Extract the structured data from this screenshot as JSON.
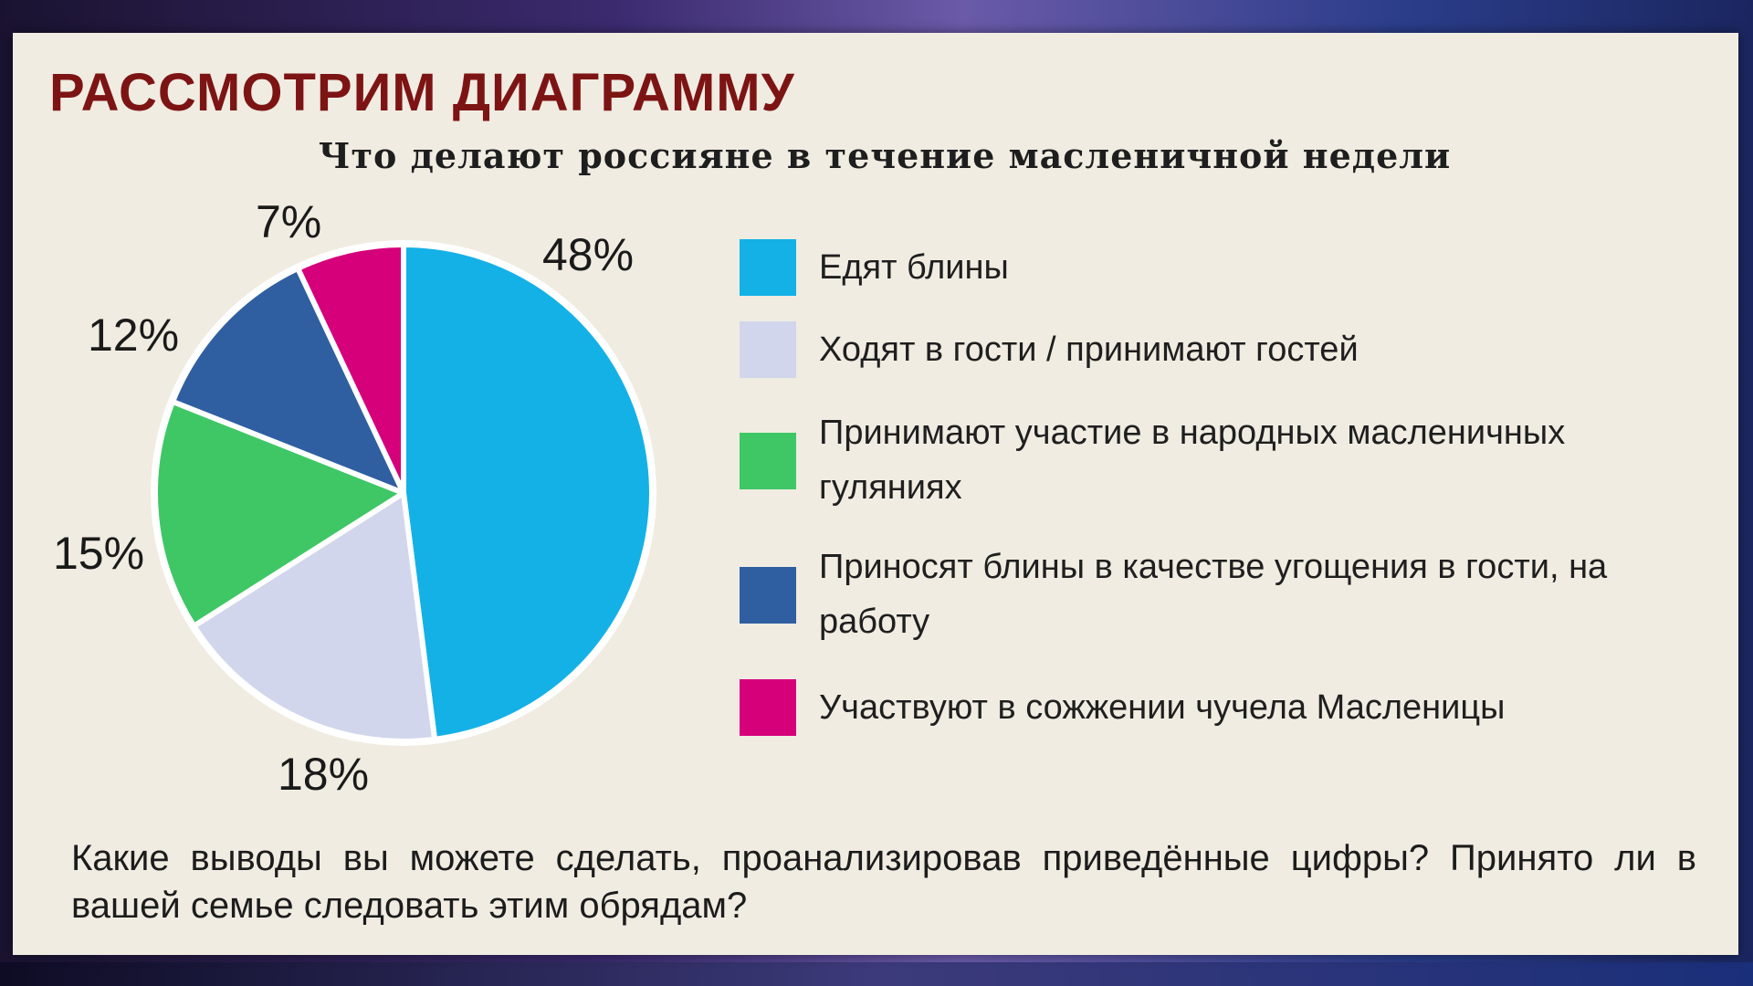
{
  "slide": {
    "heading": "РАССМОТРИМ ДИАГРАММУ",
    "question": "Какие выводы вы можете сделать, проанализировав приведённые цифры? Принято ли в вашей семье следовать этим обрядам?"
  },
  "chart_data": {
    "type": "pie",
    "title": "Что делают россияне в течение масленичной недели",
    "categories": [
      "Едят блины",
      "Ходят в гости / принимают гостей",
      "Принимают участие в народных масленичных гуляниях",
      "Приносят блины в качестве угощения в гости, на работу",
      "Участвуют в сожжении чучела Масленицы"
    ],
    "values": [
      48,
      18,
      15,
      12,
      7
    ],
    "labels": [
      "48%",
      "18%",
      "15%",
      "12%",
      "7%"
    ],
    "colors": [
      "#14b1e7",
      "#d2d6ec",
      "#3fc765",
      "#2f5fa1",
      "#d6007b"
    ],
    "legend_placement": "right"
  }
}
